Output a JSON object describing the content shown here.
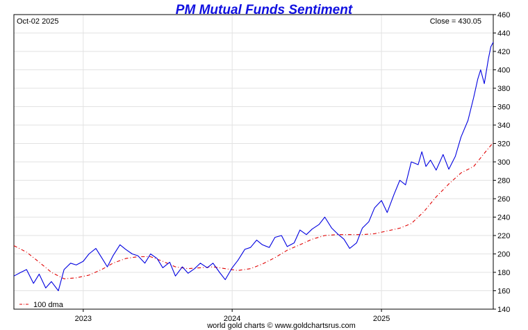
{
  "chart_data": {
    "type": "line",
    "title": "PM Mutual Funds Sentiment",
    "date_label": "Oct-02  2025",
    "close_label": "Close = 430.05",
    "footer": "world gold charts © www.goldchartsrus.com",
    "legend": "100 dma",
    "legend_position": "bottom-left",
    "ylim": [
      140,
      460
    ],
    "y_ticks": [
      140,
      160,
      180,
      200,
      220,
      240,
      260,
      280,
      300,
      320,
      340,
      360,
      380,
      400,
      420,
      440,
      460
    ],
    "x_range": [
      "2022-07-15",
      "2025-10-02"
    ],
    "x_ticks": [
      {
        "label": "2023",
        "date": "2023-01-01"
      },
      {
        "label": "2024",
        "date": "2024-01-01"
      },
      {
        "label": "2025",
        "date": "2025-01-01"
      }
    ],
    "grid": true,
    "colors": {
      "price": "#0000e0",
      "dma": "#e00000",
      "title": "#1010e0",
      "grid": "#e2e2e2"
    },
    "series": [
      {
        "name": "",
        "style": "solid",
        "x": [
          "2022-07-15",
          "2022-08-01",
          "2022-08-15",
          "2022-09-01",
          "2022-09-15",
          "2022-10-01",
          "2022-10-15",
          "2022-11-01",
          "2022-11-15",
          "2022-12-01",
          "2022-12-15",
          "2023-01-01",
          "2023-01-15",
          "2023-02-01",
          "2023-02-15",
          "2023-03-01",
          "2023-03-15",
          "2023-04-01",
          "2023-04-15",
          "2023-05-01",
          "2023-05-15",
          "2023-06-01",
          "2023-06-15",
          "2023-07-01",
          "2023-07-15",
          "2023-08-01",
          "2023-08-15",
          "2023-09-01",
          "2023-09-15",
          "2023-10-01",
          "2023-10-15",
          "2023-11-01",
          "2023-11-15",
          "2023-12-01",
          "2023-12-15",
          "2024-01-01",
          "2024-01-15",
          "2024-02-01",
          "2024-02-15",
          "2024-03-01",
          "2024-03-15",
          "2024-04-01",
          "2024-04-15",
          "2024-05-01",
          "2024-05-15",
          "2024-06-01",
          "2024-06-15",
          "2024-07-01",
          "2024-07-15",
          "2024-08-01",
          "2024-08-15",
          "2024-09-01",
          "2024-09-15",
          "2024-10-01",
          "2024-10-15",
          "2024-11-01",
          "2024-11-15",
          "2024-12-01",
          "2024-12-15",
          "2025-01-01",
          "2025-01-15",
          "2025-02-01",
          "2025-02-15",
          "2025-03-01",
          "2025-03-15",
          "2025-04-01",
          "2025-04-10",
          "2025-04-20",
          "2025-05-01",
          "2025-05-15",
          "2025-06-01",
          "2025-06-15",
          "2025-07-01",
          "2025-07-15",
          "2025-08-01",
          "2025-08-15",
          "2025-08-25",
          "2025-09-01",
          "2025-09-10",
          "2025-09-20",
          "2025-09-26",
          "2025-10-02"
        ],
        "values": [
          176,
          180,
          183,
          168,
          178,
          163,
          170,
          160,
          183,
          190,
          188,
          192,
          200,
          206,
          196,
          186,
          198,
          210,
          205,
          200,
          198,
          190,
          200,
          195,
          185,
          191,
          176,
          186,
          179,
          184,
          190,
          185,
          190,
          180,
          172,
          185,
          193,
          205,
          207,
          215,
          210,
          207,
          218,
          220,
          208,
          212,
          226,
          221,
          227,
          232,
          240,
          228,
          222,
          216,
          206,
          212,
          228,
          235,
          250,
          258,
          245,
          265,
          280,
          275,
          300,
          297,
          311,
          295,
          302,
          291,
          308,
          292,
          306,
          327,
          345,
          370,
          390,
          400,
          385,
          412,
          425,
          430.05
        ]
      },
      {
        "name": "100 dma",
        "style": "dash-dot",
        "x": [
          "2022-07-15",
          "2022-08-15",
          "2022-09-15",
          "2022-10-15",
          "2022-11-15",
          "2022-12-15",
          "2023-01-15",
          "2023-02-15",
          "2023-03-15",
          "2023-04-15",
          "2023-05-15",
          "2023-06-15",
          "2023-07-15",
          "2023-08-15",
          "2023-09-15",
          "2023-10-15",
          "2023-11-15",
          "2023-12-15",
          "2024-01-15",
          "2024-02-15",
          "2024-03-15",
          "2024-04-15",
          "2024-05-15",
          "2024-06-15",
          "2024-07-15",
          "2024-08-15",
          "2024-09-15",
          "2024-10-15",
          "2024-11-15",
          "2024-12-15",
          "2025-01-15",
          "2025-02-15",
          "2025-03-15",
          "2025-04-15",
          "2025-05-15",
          "2025-06-15",
          "2025-07-15",
          "2025-08-15",
          "2025-09-15",
          "2025-10-02"
        ],
        "values": [
          209,
          202,
          191,
          180,
          173,
          174,
          177,
          183,
          190,
          195,
          197,
          197,
          192,
          186,
          184,
          185,
          186,
          184,
          182,
          184,
          189,
          196,
          204,
          210,
          216,
          220,
          221,
          221,
          221,
          222,
          225,
          228,
          233,
          246,
          262,
          276,
          288,
          295,
          312,
          321
        ]
      }
    ]
  }
}
